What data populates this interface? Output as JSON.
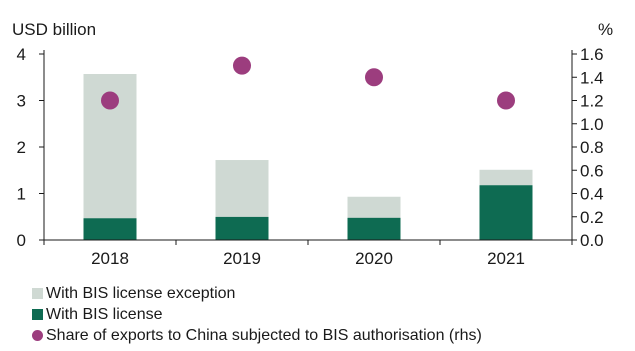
{
  "chart_data": {
    "type": "bar",
    "categories": [
      "2018",
      "2019",
      "2020",
      "2021"
    ],
    "ylabel_left": "USD billion",
    "ylabel_right": "%",
    "ylim_left": [
      0,
      4
    ],
    "ylim_right": [
      0,
      1.6
    ],
    "yticks_left": [
      "0",
      "1",
      "2",
      "3",
      "4"
    ],
    "yticks_right": [
      "0.0",
      "0.2",
      "0.4",
      "0.6",
      "0.8",
      "1.0",
      "1.2",
      "1.4",
      "1.6"
    ],
    "stacked": true,
    "series": [
      {
        "name": "With BIS license",
        "axis": "left",
        "kind": "bar",
        "color": "#0e6b52",
        "values": [
          0.47,
          0.5,
          0.48,
          1.18
        ]
      },
      {
        "name": "With BIS license exception",
        "axis": "left",
        "kind": "bar",
        "color": "#cfd9d3",
        "values": [
          3.1,
          1.22,
          0.45,
          0.33
        ]
      },
      {
        "name": "Share of exports to China subjected to BIS authorisation (rhs)",
        "axis": "right",
        "kind": "scatter",
        "color": "#9c3d7e",
        "values": [
          1.2,
          1.5,
          1.4,
          1.2
        ]
      }
    ],
    "legend_order": [
      1,
      0,
      2
    ],
    "legend_position": "bottom",
    "grid": false
  }
}
